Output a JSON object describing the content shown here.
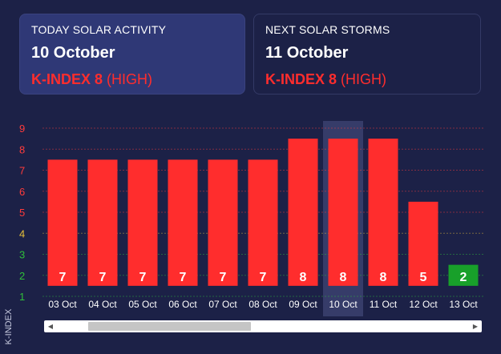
{
  "today": {
    "label": "TODAY SOLAR ACTIVITY",
    "date": "10 October",
    "kindex": "K-INDEX 8",
    "level": "(HIGH)"
  },
  "next": {
    "label": "NEXT SOLAR STORMS",
    "date": "11 October",
    "kindex": "K-INDEX 8",
    "level": "(HIGH)"
  },
  "colors": {
    "high": "#ff2d2d",
    "low": "#18a02a",
    "tick_red": "#ff3b3b",
    "tick_yellow": "#e8c13a",
    "tick_green": "#2fbf3a"
  },
  "chart_data": {
    "type": "bar",
    "ylabel": "K-INDEX",
    "ylim": [
      1,
      9
    ],
    "yticks": [
      "1",
      "2",
      "3",
      "4",
      "5",
      "6",
      "7",
      "8",
      "9"
    ],
    "categories": [
      "03 Oct",
      "04 Oct",
      "05 Oct",
      "06 Oct",
      "07 Oct",
      "08 Oct",
      "09 Oct",
      "10 Oct",
      "11 Oct",
      "12 Oct",
      "13 Oct"
    ],
    "values": [
      7,
      7,
      7,
      7,
      7,
      7,
      8,
      8,
      8,
      5,
      2
    ],
    "highlighted": "10 Oct"
  },
  "scrollbar": {
    "left_icon": "arrow-left-icon",
    "right_icon": "arrow-right-icon"
  }
}
